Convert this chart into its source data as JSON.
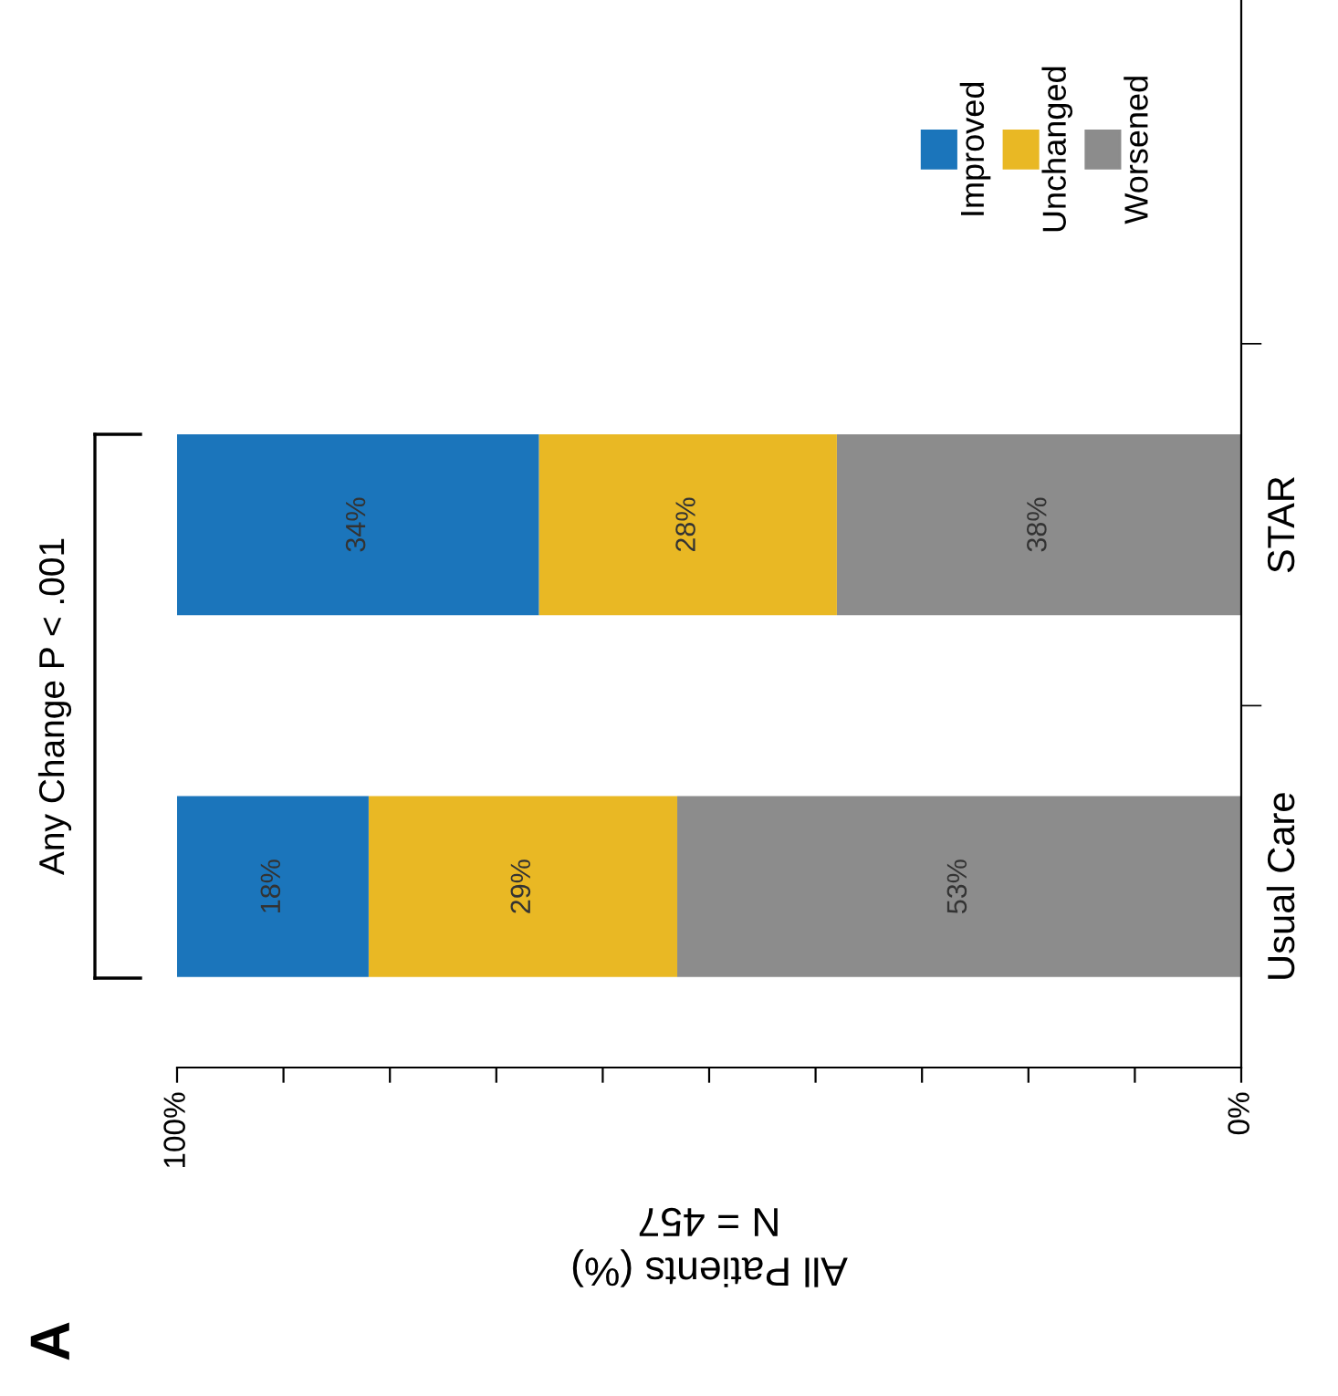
{
  "chart_data": {
    "type": "bar",
    "orientation": "horizontal",
    "stacked": true,
    "title": "A",
    "xlabel": "All Patients (%)\nN = 457",
    "categories": [
      "STAR",
      "Usual Care"
    ],
    "series": [
      {
        "name": "Worsened",
        "color": "#8c8c8c",
        "values": [
          38,
          53
        ],
        "value_labels": [
          "38%",
          "53%"
        ]
      },
      {
        "name": "Unchanged",
        "color": "#e9b824",
        "values": [
          28,
          29
        ],
        "value_labels": [
          "28%",
          "29%"
        ]
      },
      {
        "name": "Improved",
        "color": "#1b75bb",
        "values": [
          34,
          18
        ],
        "value_labels": [
          "34%",
          "18%"
        ]
      }
    ],
    "xlim": [
      100,
      0
    ],
    "xticks": [
      {
        "value": 100,
        "label": "100%"
      },
      {
        "value": 90,
        "label": null
      },
      {
        "value": 80,
        "label": null
      },
      {
        "value": 70,
        "label": null
      },
      {
        "value": 60,
        "label": null
      },
      {
        "value": 50,
        "label": null
      },
      {
        "value": 40,
        "label": null
      },
      {
        "value": 30,
        "label": null
      },
      {
        "value": 20,
        "label": null
      },
      {
        "value": 10,
        "label": null
      },
      {
        "value": 0,
        "label": "0%"
      }
    ],
    "annotations": [
      "Any Change P < .001"
    ],
    "legend": "top right",
    "grid": false
  }
}
